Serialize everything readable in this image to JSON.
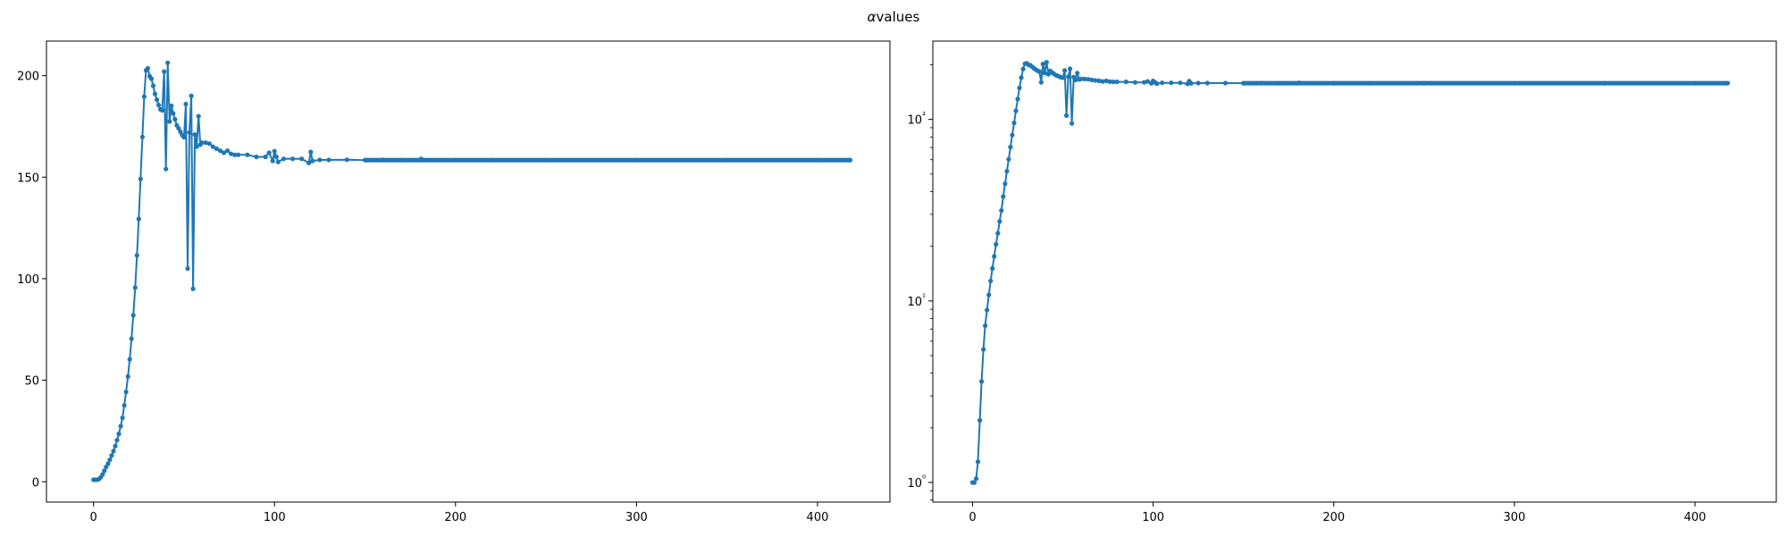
{
  "figure": {
    "title_symbol": "α",
    "title_text": "values"
  },
  "colors": {
    "series": "#1f77b4",
    "axes": "#000000"
  },
  "chart_data": [
    {
      "type": "line",
      "title": "",
      "xlabel": "",
      "ylabel": "",
      "yscale": "linear",
      "xlim": [
        -26,
        440
      ],
      "ylim": [
        -10,
        217
      ],
      "xticks": [
        0,
        100,
        200,
        300,
        400
      ],
      "yticks": [
        0,
        50,
        100,
        150,
        200
      ],
      "ytick_labels": [
        "0",
        "50",
        "100",
        "150",
        "200"
      ],
      "grid": false,
      "marker": "circle",
      "series": [
        {
          "x": [
            0,
            1,
            2,
            3,
            4,
            5,
            6,
            7,
            8,
            9,
            10,
            11,
            12,
            13,
            14,
            15,
            16,
            17,
            18,
            19,
            20,
            21,
            22,
            23,
            24,
            25,
            26,
            27,
            28,
            29,
            30,
            31,
            32,
            33,
            34,
            35,
            36,
            37,
            38,
            39,
            40,
            41,
            42,
            43,
            44,
            45,
            46,
            47,
            48,
            49,
            50,
            51,
            52,
            53,
            54,
            55,
            56,
            57,
            58,
            59,
            60,
            62,
            64,
            66,
            68,
            70,
            72,
            74,
            76,
            78,
            80,
            85,
            90,
            95,
            97,
            99,
            100,
            101,
            102,
            105,
            110,
            115,
            119,
            120,
            121,
            125,
            130,
            140,
            150,
            160,
            170,
            180,
            181,
            200,
            220,
            250,
            300,
            350,
            400,
            418
          ],
          "y": [
            1,
            1,
            1,
            1.3,
            2.2,
            3.6,
            5.4,
            7.3,
            8.9,
            10.8,
            12.9,
            15.1,
            17.6,
            20.5,
            23.6,
            27.4,
            31.5,
            37.6,
            44.2,
            51.8,
            60.3,
            70.4,
            82,
            95.6,
            111.5,
            129.4,
            149.1,
            169.8,
            189.7,
            202.6,
            203.6,
            199.7,
            198.5,
            195,
            191,
            188.2,
            185.5,
            183.4,
            182.9,
            202,
            154,
            206.3,
            177.4,
            185.2,
            181.4,
            178.5,
            175.5,
            174,
            172.4,
            170.7,
            169.6,
            186,
            105,
            172,
            190,
            95,
            171,
            165,
            180,
            166,
            167,
            167,
            166.5,
            165,
            164,
            163,
            162,
            163,
            161.5,
            161,
            161,
            161,
            160,
            160,
            162,
            158,
            162.8,
            160,
            157.5,
            159,
            159,
            159,
            157,
            162.4,
            158,
            158.5,
            158.5,
            158.6,
            158.4,
            158.5,
            158.4,
            158.4,
            159,
            158.4,
            158.4,
            158.4,
            158.4,
            158.4,
            158.4,
            158.4
          ]
        }
      ]
    },
    {
      "type": "line",
      "title": "",
      "xlabel": "",
      "ylabel": "",
      "yscale": "log",
      "xlim": [
        -22,
        445
      ],
      "ylim": [
        0.78,
        270
      ],
      "xticks": [
        0,
        100,
        200,
        300,
        400
      ],
      "yticks": [
        1,
        10,
        100
      ],
      "ytick_labels": [
        "10⁰",
        "10¹",
        "10²"
      ],
      "grid": false,
      "marker": "circle",
      "series": [
        {
          "x": [
            0,
            1,
            2,
            3,
            4,
            5,
            6,
            7,
            8,
            9,
            10,
            11,
            12,
            13,
            14,
            15,
            16,
            17,
            18,
            19,
            20,
            21,
            22,
            23,
            24,
            25,
            26,
            27,
            28,
            29,
            30,
            31,
            32,
            33,
            34,
            35,
            36,
            37,
            38,
            39,
            40,
            41,
            42,
            43,
            44,
            45,
            46,
            47,
            48,
            49,
            50,
            51,
            52,
            53,
            54,
            55,
            56,
            57,
            58,
            59,
            60,
            62,
            64,
            66,
            68,
            70,
            72,
            74,
            76,
            78,
            80,
            85,
            90,
            95,
            97,
            99,
            100,
            101,
            102,
            105,
            110,
            115,
            119,
            120,
            121,
            125,
            130,
            140,
            150,
            160,
            170,
            180,
            181,
            200,
            220,
            250,
            300,
            350,
            400,
            418
          ],
          "y": [
            1,
            1,
            1.05,
            1.3,
            2.2,
            3.6,
            5.4,
            7.3,
            8.9,
            10.8,
            12.9,
            15.1,
            17.6,
            20.5,
            23.6,
            27.4,
            31.5,
            37.6,
            44.2,
            51.8,
            60.3,
            70.4,
            82,
            95.6,
            111.5,
            129.4,
            149.1,
            169.8,
            189.7,
            202.6,
            203.6,
            199.7,
            198.5,
            195,
            191,
            188.2,
            185.5,
            183.4,
            160,
            202,
            180,
            206.3,
            177.4,
            185.2,
            181.4,
            178.5,
            175.5,
            174,
            172.4,
            170.7,
            169.6,
            186,
            105,
            172,
            190,
            95,
            171,
            165,
            180,
            166,
            167,
            167,
            166.5,
            165,
            164,
            163,
            162,
            163,
            161.5,
            161,
            161,
            161,
            160,
            160,
            162,
            158,
            162.8,
            160,
            157.5,
            159,
            159,
            159,
            157,
            162.4,
            158,
            158.5,
            158.5,
            158.6,
            158.4,
            158.5,
            158.4,
            158.4,
            159,
            158.4,
            158.4,
            158.4,
            158.4,
            158.4,
            158.4,
            158.4
          ]
        }
      ]
    }
  ]
}
